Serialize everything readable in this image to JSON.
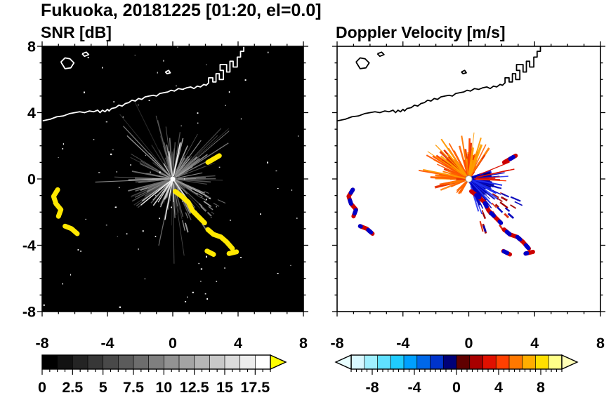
{
  "header": {
    "title": "Fukuoka, 20181225 [01:20, el=0.0]"
  },
  "chart_data": [
    {
      "id": "snr",
      "type": "heatmap",
      "subtype": "radar-ppi",
      "title": "SNR [dB]",
      "units": "dB",
      "xlim": [
        -8,
        8
      ],
      "ylim": [
        -8,
        8
      ],
      "xticks": [
        -8,
        -4,
        0,
        4,
        8
      ],
      "yticks": [
        8,
        4,
        0,
        -4,
        -8
      ],
      "minor_tick": 1,
      "show_y_labels": true,
      "background": "#000000",
      "coast_color": "#ffffff",
      "radar_center": [
        0,
        0
      ],
      "center_dot": {
        "fill": "#ffffff",
        "stroke": "none",
        "r": 3.5
      },
      "streak_sets": [
        {
          "seed": 7,
          "count": 150,
          "angle": [
            0,
            360
          ],
          "r0": [
            0.05,
            0.35
          ],
          "len": [
            0.3,
            2.6
          ],
          "width": [
            0.7,
            1.8
          ],
          "opacity": [
            0.45,
            1
          ],
          "colors": [
            "#383838",
            "#4d4d4d",
            "#636363",
            "#7a7a7a",
            "#929292",
            "#ababab",
            "#c4c4c4"
          ]
        },
        {
          "seed": 13,
          "count": 26,
          "angle": [
            0,
            360
          ],
          "r0": [
            0.1,
            0.4
          ],
          "len": [
            2.4,
            5.0
          ],
          "width": [
            0.7,
            1.4
          ],
          "opacity": [
            0.35,
            0.85
          ],
          "colors": [
            "#6a6a6a",
            "#8a8a8a",
            "#ababab"
          ]
        },
        {
          "seed": 5,
          "count": 9,
          "angle": [
            0,
            360
          ],
          "r0": [
            0.05,
            0.2
          ],
          "len": [
            0.8,
            2.6
          ],
          "width": [
            1.1,
            1.9
          ],
          "opacity": [
            0.8,
            1
          ],
          "colors": [
            "#dcdcdc",
            "#f2f2f2",
            "#ffffff"
          ]
        },
        {
          "seed": 21,
          "count": 20,
          "angle": [
            -80,
            -20
          ],
          "r0": [
            1.6,
            3.4
          ],
          "len": [
            0.2,
            0.7
          ],
          "width": [
            1,
            2
          ],
          "opacity": [
            0.5,
            1
          ],
          "colors": [
            "#8f8f8f",
            "#bdbdbd"
          ]
        }
      ],
      "noise": {
        "seed": 101,
        "count": 85,
        "color": "#ffffff"
      },
      "echo_style": {
        "main": "#ffe800",
        "accent": null,
        "width": 7
      },
      "colorbar": {
        "range": [
          0,
          18.75
        ],
        "ticks": [
          0,
          2.5,
          5,
          7.5,
          10,
          12.5,
          15,
          17.5
        ],
        "labels": [
          "0",
          "2.5",
          "5",
          "7.5",
          "10",
          "12.5",
          "15",
          "17.5"
        ],
        "minor": 0.625,
        "segments": [
          "#000000",
          "#121212",
          "#242424",
          "#373737",
          "#494949",
          "#5b5b5b",
          "#6d6d6d",
          "#7f7f7f",
          "#929292",
          "#a4a4a4",
          "#b6b6b6",
          "#c8c8c8",
          "#dbdbdb",
          "#ededed",
          "#ffffff"
        ],
        "arrow_left": null,
        "arrow_right": "#ffff00"
      }
    },
    {
      "id": "doppler",
      "type": "heatmap",
      "subtype": "radar-ppi",
      "title": "Doppler Velocity [m/s]",
      "units": "m/s",
      "xlim": [
        -8,
        8
      ],
      "ylim": [
        -8,
        8
      ],
      "xticks": [
        -8,
        -4,
        0,
        4,
        8
      ],
      "yticks": [
        8,
        4,
        0,
        -4,
        -8
      ],
      "minor_tick": 1,
      "show_y_labels": false,
      "background": "#ffffff",
      "coast_color": "#000000",
      "radar_center": [
        0,
        0
      ],
      "center_dot": {
        "fill": "#ffffff",
        "stroke": "#999999",
        "r": 4.5
      },
      "streak_sets": [
        {
          "seed": 7,
          "count": 95,
          "angle": [
            55,
            205
          ],
          "r0": [
            0.08,
            0.3
          ],
          "len": [
            0.3,
            2.2
          ],
          "width": [
            1.5,
            3.5
          ],
          "opacity": [
            0.85,
            1
          ],
          "colors": [
            "#ff4400",
            "#ff5f00",
            "#ff7b00",
            "#ffa200",
            "#e63000"
          ]
        },
        {
          "seed": 3,
          "count": 14,
          "angle": [
            65,
            185
          ],
          "r0": [
            0.1,
            0.3
          ],
          "len": [
            1.8,
            3.0
          ],
          "width": [
            1,
            2.2
          ],
          "opacity": [
            0.9,
            1
          ],
          "colors": [
            "#ff7700",
            "#ff9900",
            "#ff5500"
          ]
        },
        {
          "seed": 9,
          "count": 95,
          "angle": [
            -70,
            20
          ],
          "r0": [
            0.08,
            0.3
          ],
          "len": [
            0.2,
            1.3
          ],
          "width": [
            2,
            5
          ],
          "opacity": [
            0.85,
            1
          ],
          "colors": [
            "#000099",
            "#0000cc",
            "#0014e6",
            "#000070"
          ]
        },
        {
          "seed": 17,
          "count": 28,
          "angle": [
            -75,
            10
          ],
          "r0": [
            0.2,
            0.5
          ],
          "len": [
            1.0,
            2.2
          ],
          "width": [
            1,
            2.6
          ],
          "opacity": [
            0.85,
            1
          ],
          "colors": [
            "#0000bb",
            "#2030f0"
          ]
        },
        {
          "seed": 21,
          "count": 26,
          "angle": [
            -78,
            -22
          ],
          "r0": [
            1.6,
            3.5
          ],
          "len": [
            0.2,
            0.7
          ],
          "width": [
            1.5,
            3
          ],
          "opacity": [
            0.9,
            1
          ],
          "colors": [
            "#0000bb",
            "#a00000",
            "#dd2200"
          ]
        },
        {
          "seed": 29,
          "count": 7,
          "angle": [
            -8,
            25
          ],
          "r0": [
            0.3,
            0.8
          ],
          "len": [
            1.2,
            2.2
          ],
          "width": [
            1,
            2
          ],
          "opacity": [
            0.9,
            1
          ],
          "colors": [
            "#dd1100",
            "#ff3300"
          ]
        },
        {
          "seed": 31,
          "count": 6,
          "angle": [
            200,
            242
          ],
          "r0": [
            0.1,
            0.3
          ],
          "len": [
            0.4,
            1.0
          ],
          "width": [
            1.5,
            2.6
          ],
          "opacity": [
            1,
            1
          ],
          "colors": [
            "#ff6600"
          ]
        }
      ],
      "noise": null,
      "echo_style": {
        "main": "#cc0000",
        "accent": "#0000c8",
        "width": 6
      },
      "colorbar": {
        "range": [
          -10,
          10
        ],
        "ticks": [
          -8,
          -4,
          0,
          4,
          8
        ],
        "labels": [
          "-8",
          "-4",
          "0",
          "4",
          "8"
        ],
        "minor": 0.5,
        "segments": [
          "#d8f8ff",
          "#a0f0ff",
          "#60e0ff",
          "#20ccff",
          "#00a0ff",
          "#0068e8",
          "#0034cc",
          "#000078",
          "#600000",
          "#a80000",
          "#e01000",
          "#ff4000",
          "#ff7800",
          "#ffae00",
          "#ffe000",
          "#ffff88"
        ],
        "arrow_left": "#e8feff",
        "arrow_right": "#ffffb8"
      }
    }
  ],
  "echo_shapes": [
    [
      [
        -7.05,
        -0.65
      ],
      [
        -7.3,
        -1.05
      ],
      [
        -7.15,
        -1.5
      ],
      [
        -6.85,
        -1.85
      ],
      [
        -7.0,
        -2.25
      ]
    ],
    [
      [
        -6.6,
        -2.85
      ],
      [
        -6.2,
        -3.0
      ],
      [
        -5.85,
        -3.3
      ]
    ],
    [
      [
        0.15,
        -0.75
      ],
      [
        0.55,
        -1.05
      ],
      [
        0.95,
        -1.4
      ],
      [
        1.2,
        -1.9
      ],
      [
        1.55,
        -2.25
      ],
      [
        1.95,
        -2.65
      ]
    ],
    [
      [
        2.15,
        -3.05
      ],
      [
        2.5,
        -3.35
      ],
      [
        2.95,
        -3.5
      ],
      [
        3.3,
        -3.8
      ],
      [
        3.65,
        -4.2
      ]
    ],
    [
      [
        2.1,
        -4.35
      ],
      [
        2.5,
        -4.55
      ]
    ],
    [
      [
        3.45,
        -4.5
      ],
      [
        3.9,
        -4.4
      ]
    ],
    [
      [
        2.15,
        1.0
      ],
      [
        2.85,
        1.4
      ]
    ]
  ],
  "coastline": {
    "main": [
      [
        -8,
        3.5
      ],
      [
        -7.5,
        3.6
      ],
      [
        -7.1,
        3.75
      ],
      [
        -6.7,
        3.8
      ],
      [
        -6.3,
        3.95
      ],
      [
        -6,
        4
      ],
      [
        -5.7,
        4.05
      ],
      [
        -5.4,
        4
      ],
      [
        -5.1,
        4.1
      ],
      [
        -4.85,
        4.05
      ],
      [
        -4.6,
        4.15
      ],
      [
        -4.45,
        4
      ],
      [
        -4.3,
        4.15
      ],
      [
        -4.15,
        4.05
      ],
      [
        -4,
        4.2
      ],
      [
        -3.9,
        4.1
      ],
      [
        -3.75,
        4.25
      ],
      [
        -3.5,
        4.3
      ],
      [
        -3.3,
        4.45
      ],
      [
        -3.1,
        4.4
      ],
      [
        -2.9,
        4.55
      ],
      [
        -2.7,
        4.6
      ],
      [
        -2.5,
        4.75
      ],
      [
        -2.3,
        4.7
      ],
      [
        -2.1,
        4.85
      ],
      [
        -1.9,
        4.8
      ],
      [
        -1.7,
        4.95
      ],
      [
        -1.45,
        5
      ],
      [
        -1.2,
        5.05
      ],
      [
        -1,
        5
      ],
      [
        -0.8,
        5.15
      ],
      [
        -0.55,
        5.2
      ],
      [
        -0.3,
        5.25
      ],
      [
        -0.1,
        5.35
      ],
      [
        0.1,
        5.3
      ],
      [
        0.35,
        5.45
      ],
      [
        0.6,
        5.4
      ],
      [
        0.85,
        5.5
      ],
      [
        1.1,
        5.55
      ],
      [
        1.3,
        5.45
      ],
      [
        1.5,
        5.6
      ],
      [
        1.7,
        5.55
      ],
      [
        1.9,
        5.7
      ],
      [
        2.05,
        5.65
      ],
      [
        2.2,
        5.8
      ],
      [
        2.2,
        6.1
      ],
      [
        2.45,
        6.1
      ],
      [
        2.45,
        5.85
      ],
      [
        2.65,
        5.85
      ],
      [
        2.65,
        6.35
      ],
      [
        2.85,
        6.35
      ],
      [
        2.85,
        6
      ],
      [
        3.1,
        6
      ],
      [
        3.1,
        6.55
      ],
      [
        2.9,
        6.55
      ],
      [
        2.9,
        6.9
      ],
      [
        3.3,
        6.9
      ],
      [
        3.3,
        6.45
      ],
      [
        3.5,
        6.45
      ],
      [
        3.5,
        7.1
      ],
      [
        3.7,
        7.1
      ],
      [
        3.7,
        6.75
      ],
      [
        3.95,
        6.75
      ],
      [
        3.95,
        7.35
      ],
      [
        4.15,
        7.35
      ],
      [
        4.15,
        7.7
      ],
      [
        4.35,
        7.7
      ],
      [
        4.35,
        8.05
      ]
    ],
    "islands": [
      [
        [
          -6.85,
          7.05
        ],
        [
          -6.6,
          7.3
        ],
        [
          -6.3,
          7.25
        ],
        [
          -6.05,
          7
        ],
        [
          -6.25,
          6.7
        ],
        [
          -6.6,
          6.65
        ],
        [
          -6.85,
          7.05
        ]
      ],
      [
        [
          -5.55,
          7.55
        ],
        [
          -5.3,
          7.65
        ],
        [
          -5.15,
          7.5
        ],
        [
          -5.4,
          7.4
        ],
        [
          -5.55,
          7.55
        ]
      ],
      [
        [
          -0.45,
          6.45
        ],
        [
          -0.25,
          6.55
        ],
        [
          -0.15,
          6.4
        ],
        [
          -0.35,
          6.35
        ],
        [
          -0.45,
          6.45
        ]
      ]
    ]
  }
}
